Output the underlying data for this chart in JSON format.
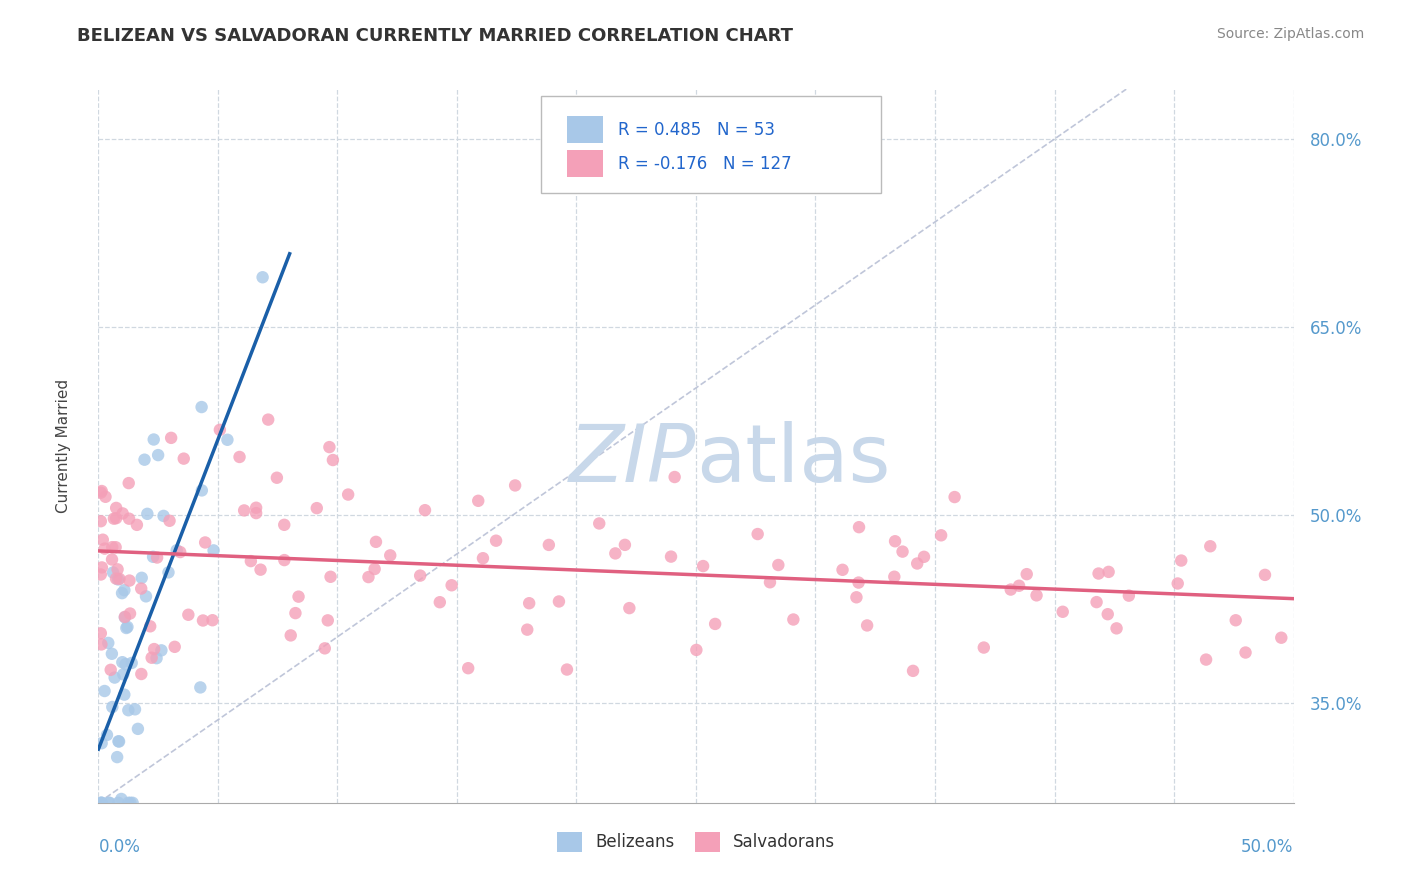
{
  "title": "BELIZEAN VS SALVADORAN CURRENTLY MARRIED CORRELATION CHART",
  "source": "Source: ZipAtlas.com",
  "ylabel": "Currently Married",
  "xlim": [
    0.0,
    0.5
  ],
  "ylim": [
    0.27,
    0.84
  ],
  "yticks": [
    0.35,
    0.5,
    0.65,
    0.8
  ],
  "ytick_labels": [
    "35.0%",
    "50.0%",
    "65.0%",
    "80.0%"
  ],
  "blue_R": "0.485",
  "blue_N": "53",
  "pink_R": "-0.176",
  "pink_N": "127",
  "blue_dot_color": "#a8c8e8",
  "pink_dot_color": "#f4a0b8",
  "blue_line_color": "#1a5fa8",
  "pink_line_color": "#e06080",
  "diag_color": "#b0b8d0",
  "watermark_color": "#c8d8ea",
  "grid_color": "#d0d8e0",
  "background_color": "#ffffff",
  "title_color": "#333333",
  "source_color": "#888888",
  "tick_color": "#5599cc",
  "ylabel_color": "#444444",
  "legend_text_color": "#333333",
  "legend_R_color": "#2266cc"
}
